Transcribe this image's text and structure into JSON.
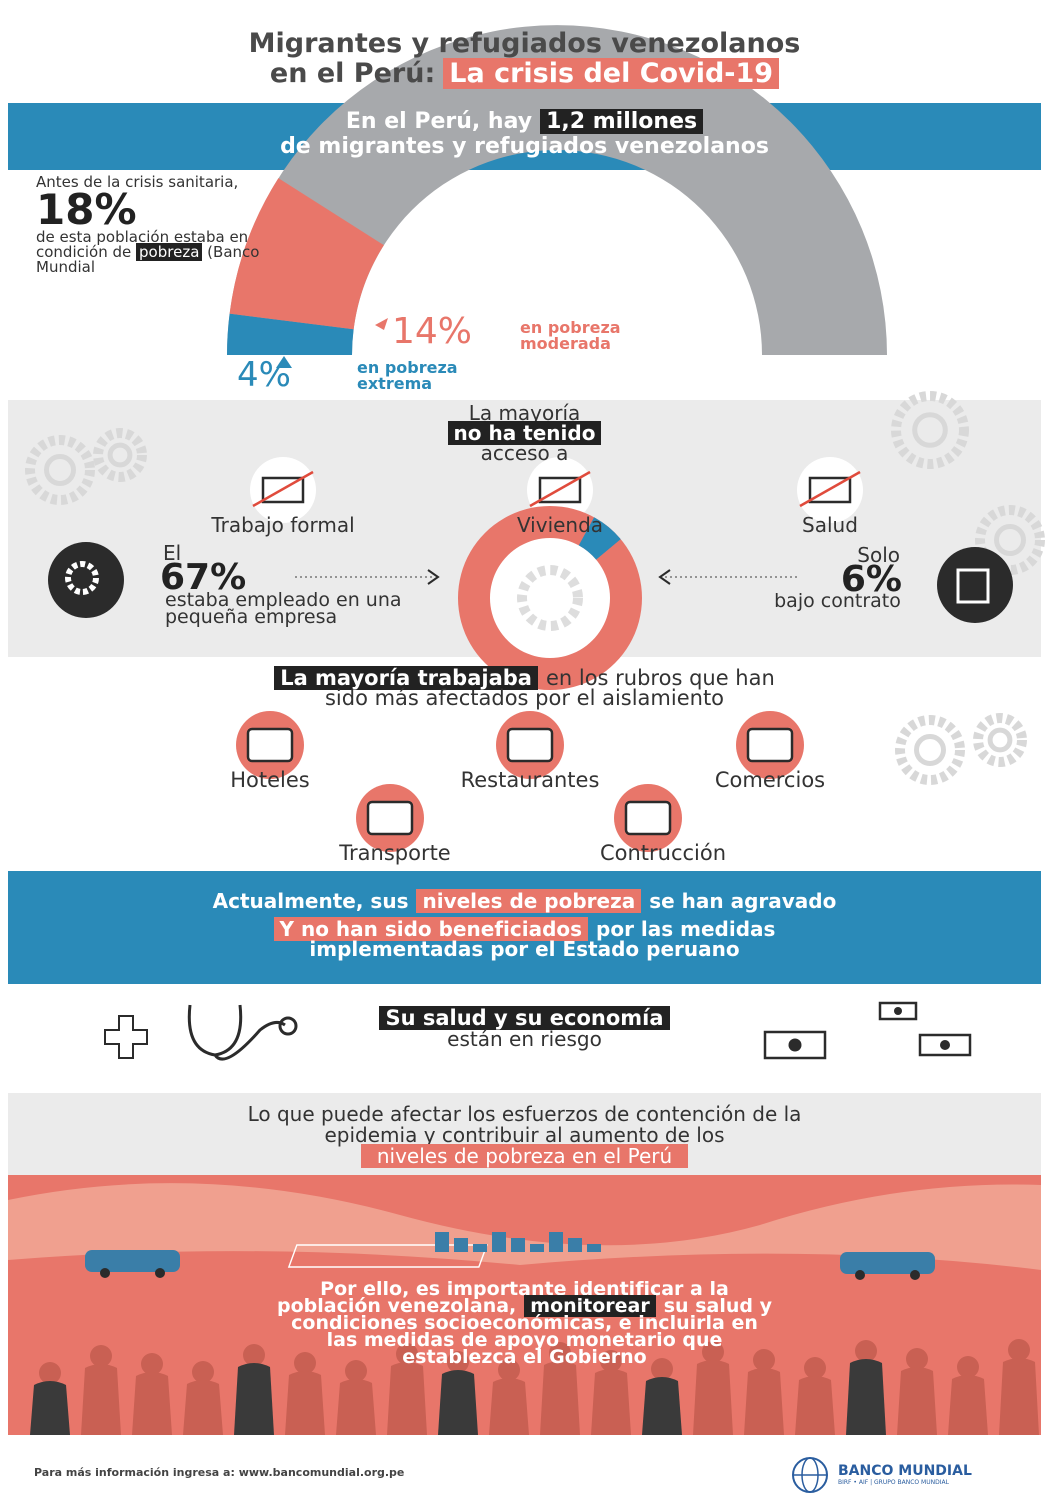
{
  "header": {
    "title_line1": "Migrantes y refugiados venezolanos",
    "title_line2": "en el Perú:",
    "title_highlight": "La crisis del Covid-19"
  },
  "population": {
    "text_before": "En el Perú, hay",
    "highlight": "1,2 millones",
    "text_after": "de migrantes y refugiados venezolanos"
  },
  "poverty": {
    "intro": "Antes de la crisis sanitaria,",
    "total": {
      "value": 18,
      "label": "18%"
    },
    "description_before": "de esta población estaba en condición de",
    "description_highlight": "pobreza",
    "description_after": "(Banco Mundial",
    "moderate": {
      "value": 14,
      "label": "14%",
      "text": "en pobreza moderada"
    },
    "extreme": {
      "value": 4,
      "label": "4%",
      "text": "en pobreza extrema"
    }
  },
  "access": {
    "line1": "La mayoría",
    "highlight": "no ha tenido",
    "line3": "acceso a",
    "items": [
      "Trabajo formal",
      "Vivienda",
      "Salud"
    ]
  },
  "employment": {
    "prefix": "El",
    "share": {
      "value": 67,
      "label": "67%"
    },
    "text": "estaba empleado en una pequeña empresa"
  },
  "contract": {
    "prefix": "Solo",
    "share": {
      "value": 6,
      "label": "6%"
    },
    "text": "bajo contrato"
  },
  "sectors": {
    "highlight": "La mayoría trabajaba",
    "line1_after": "en los rubros que han",
    "line2": "sido más afectados por el aislamiento",
    "items": [
      "Hoteles",
      "Restaurantes",
      "Comercios",
      "Transporte",
      "Contrucción"
    ]
  },
  "situation": {
    "line1_before": "Actualmente, sus",
    "line1_highlight": "niveles de pobreza",
    "line1_after": "se han agravado",
    "line2_highlight": "Y no han sido beneficiados",
    "line2_after": "por las medidas",
    "line3": "implementadas por el Estado peruano"
  },
  "risk": {
    "highlight": "Su salud y su economía",
    "text": "están en riesgo"
  },
  "impact": {
    "line1": "Lo que puede afectar los esfuerzos de contención de la",
    "line2": "epidemia y contribuir al aumento de los",
    "highlight": "niveles de pobreza en el Perú"
  },
  "recommendation": {
    "line1": "Por ello, es importante identificar a la",
    "line2_before": "población venezolana,",
    "line2_highlight": "monitorear",
    "line2_after": "su salud y",
    "line3": "condiciones socioeconómicas, e incluirla en",
    "line4": "las medidas de apoyo monetario que",
    "line5": "establezca el Gobierno"
  },
  "footer": {
    "text": "Para más información ingresa a:",
    "url": "www.bancomundial.org.pe",
    "logo_name": "BANCO MUNDIAL",
    "logo_sub1": "BIRF • AIF",
    "logo_sub2": "GRUPO BANCO MUNDIAL"
  }
}
